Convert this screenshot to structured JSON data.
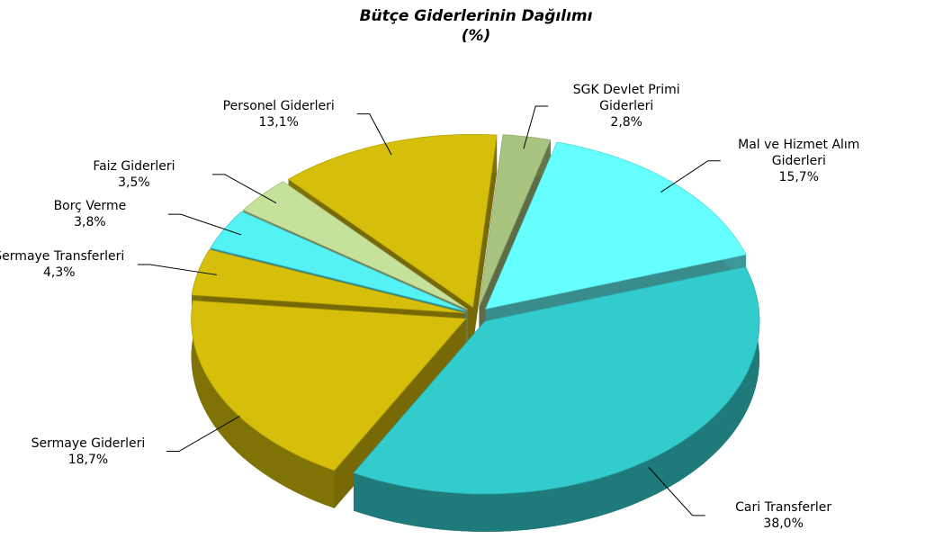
{
  "chart_data": {
    "type": "pie",
    "title": "Bütçe Giderlerinin Dağılımı",
    "subtitle": "(%)",
    "categories": [
      "SGK Devlet Primi Giderleri",
      "Mal ve Hizmet Alım Giderleri",
      "Cari Transferler",
      "Sermaye Giderleri",
      "Sermaye Transferleri",
      "Borç Verme",
      "Faiz Giderleri",
      "Personel Giderleri"
    ],
    "values": [
      2.8,
      15.7,
      38.0,
      18.7,
      4.3,
      3.8,
      3.5,
      13.1
    ],
    "value_labels": [
      "2,8%",
      "15,7%",
      "38,0%",
      "18,7%",
      "4,3%",
      "3,8%",
      "3,5%",
      "13,1%"
    ],
    "colors": [
      "#a9c47f",
      "#66ffff",
      "#33cccc",
      "#d6bf0a",
      "#d6bf0a",
      "#55f2f5",
      "#c6e29a",
      "#d6bf0a"
    ]
  }
}
